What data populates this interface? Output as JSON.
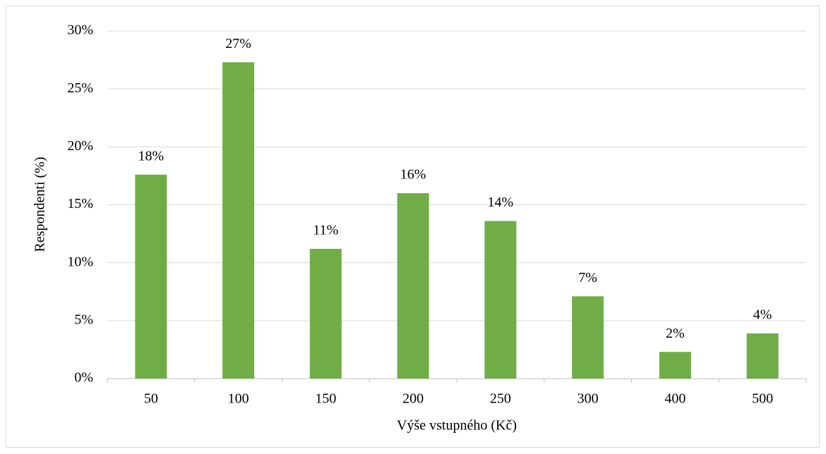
{
  "chart_data": {
    "type": "bar",
    "x_label": "Výše vstupného (Kč)",
    "y_label": "Respondenti (%)",
    "categories": [
      "50",
      "100",
      "150",
      "200",
      "250",
      "300",
      "400",
      "500"
    ],
    "values": [
      17.6,
      27.3,
      11.2,
      16.0,
      13.6,
      7.1,
      2.3,
      3.9
    ],
    "value_labels": [
      "18%",
      "27%",
      "11%",
      "16%",
      "14%",
      "7%",
      "2%",
      "4%"
    ],
    "color": "#70ad47",
    "ylim": [
      0,
      30
    ],
    "yticks": [
      {
        "value": 0,
        "label": "0%"
      },
      {
        "value": 5,
        "label": "5%"
      },
      {
        "value": 10,
        "label": "10%"
      },
      {
        "value": 15,
        "label": "15%"
      },
      {
        "value": 20,
        "label": "20%"
      },
      {
        "value": 25,
        "label": "25%"
      },
      {
        "value": 30,
        "label": "30%"
      }
    ],
    "grid": true
  }
}
